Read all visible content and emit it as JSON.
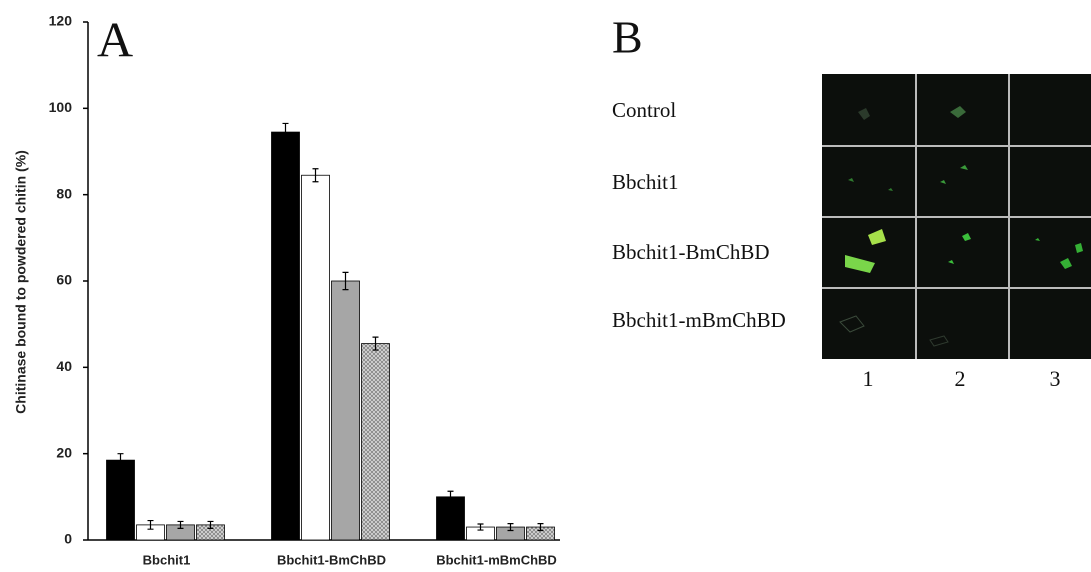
{
  "chart_data": {
    "type": "bar",
    "panel": "A",
    "y_label": "Chitinase bound to powdered chitin (%)",
    "categories": [
      "Bbchit1",
      "Bbchit1-BmChBD",
      "Bbchit1-mBmChBD"
    ],
    "series": [
      {
        "color": "#000000",
        "values": [
          18.5,
          94.5,
          10
        ],
        "errors": [
          1.5,
          2,
          1.3
        ]
      },
      {
        "color": "#ffffff",
        "values": [
          3.5,
          84.5,
          3
        ],
        "errors": [
          1,
          1.5,
          0.7
        ]
      },
      {
        "color": "#a6a6a6",
        "values": [
          3.5,
          60,
          3
        ],
        "errors": [
          0.8,
          2,
          0.8
        ]
      },
      {
        "color": "#d0d0d0",
        "hatch": true,
        "values": [
          3.5,
          45.5,
          3
        ],
        "errors": [
          0.8,
          1.5,
          0.8
        ]
      }
    ],
    "ylim": [
      0,
      120
    ],
    "yticks": [
      0,
      20,
      40,
      60,
      80,
      100,
      120
    ],
    "grid": false
  },
  "panel_b": {
    "panel": "B",
    "rows": [
      "Control",
      "Bbchit1",
      "Bbchit1-BmChBD",
      "Bbchit1-mBmChBD"
    ],
    "columns": [
      "1",
      "2",
      "3"
    ]
  }
}
